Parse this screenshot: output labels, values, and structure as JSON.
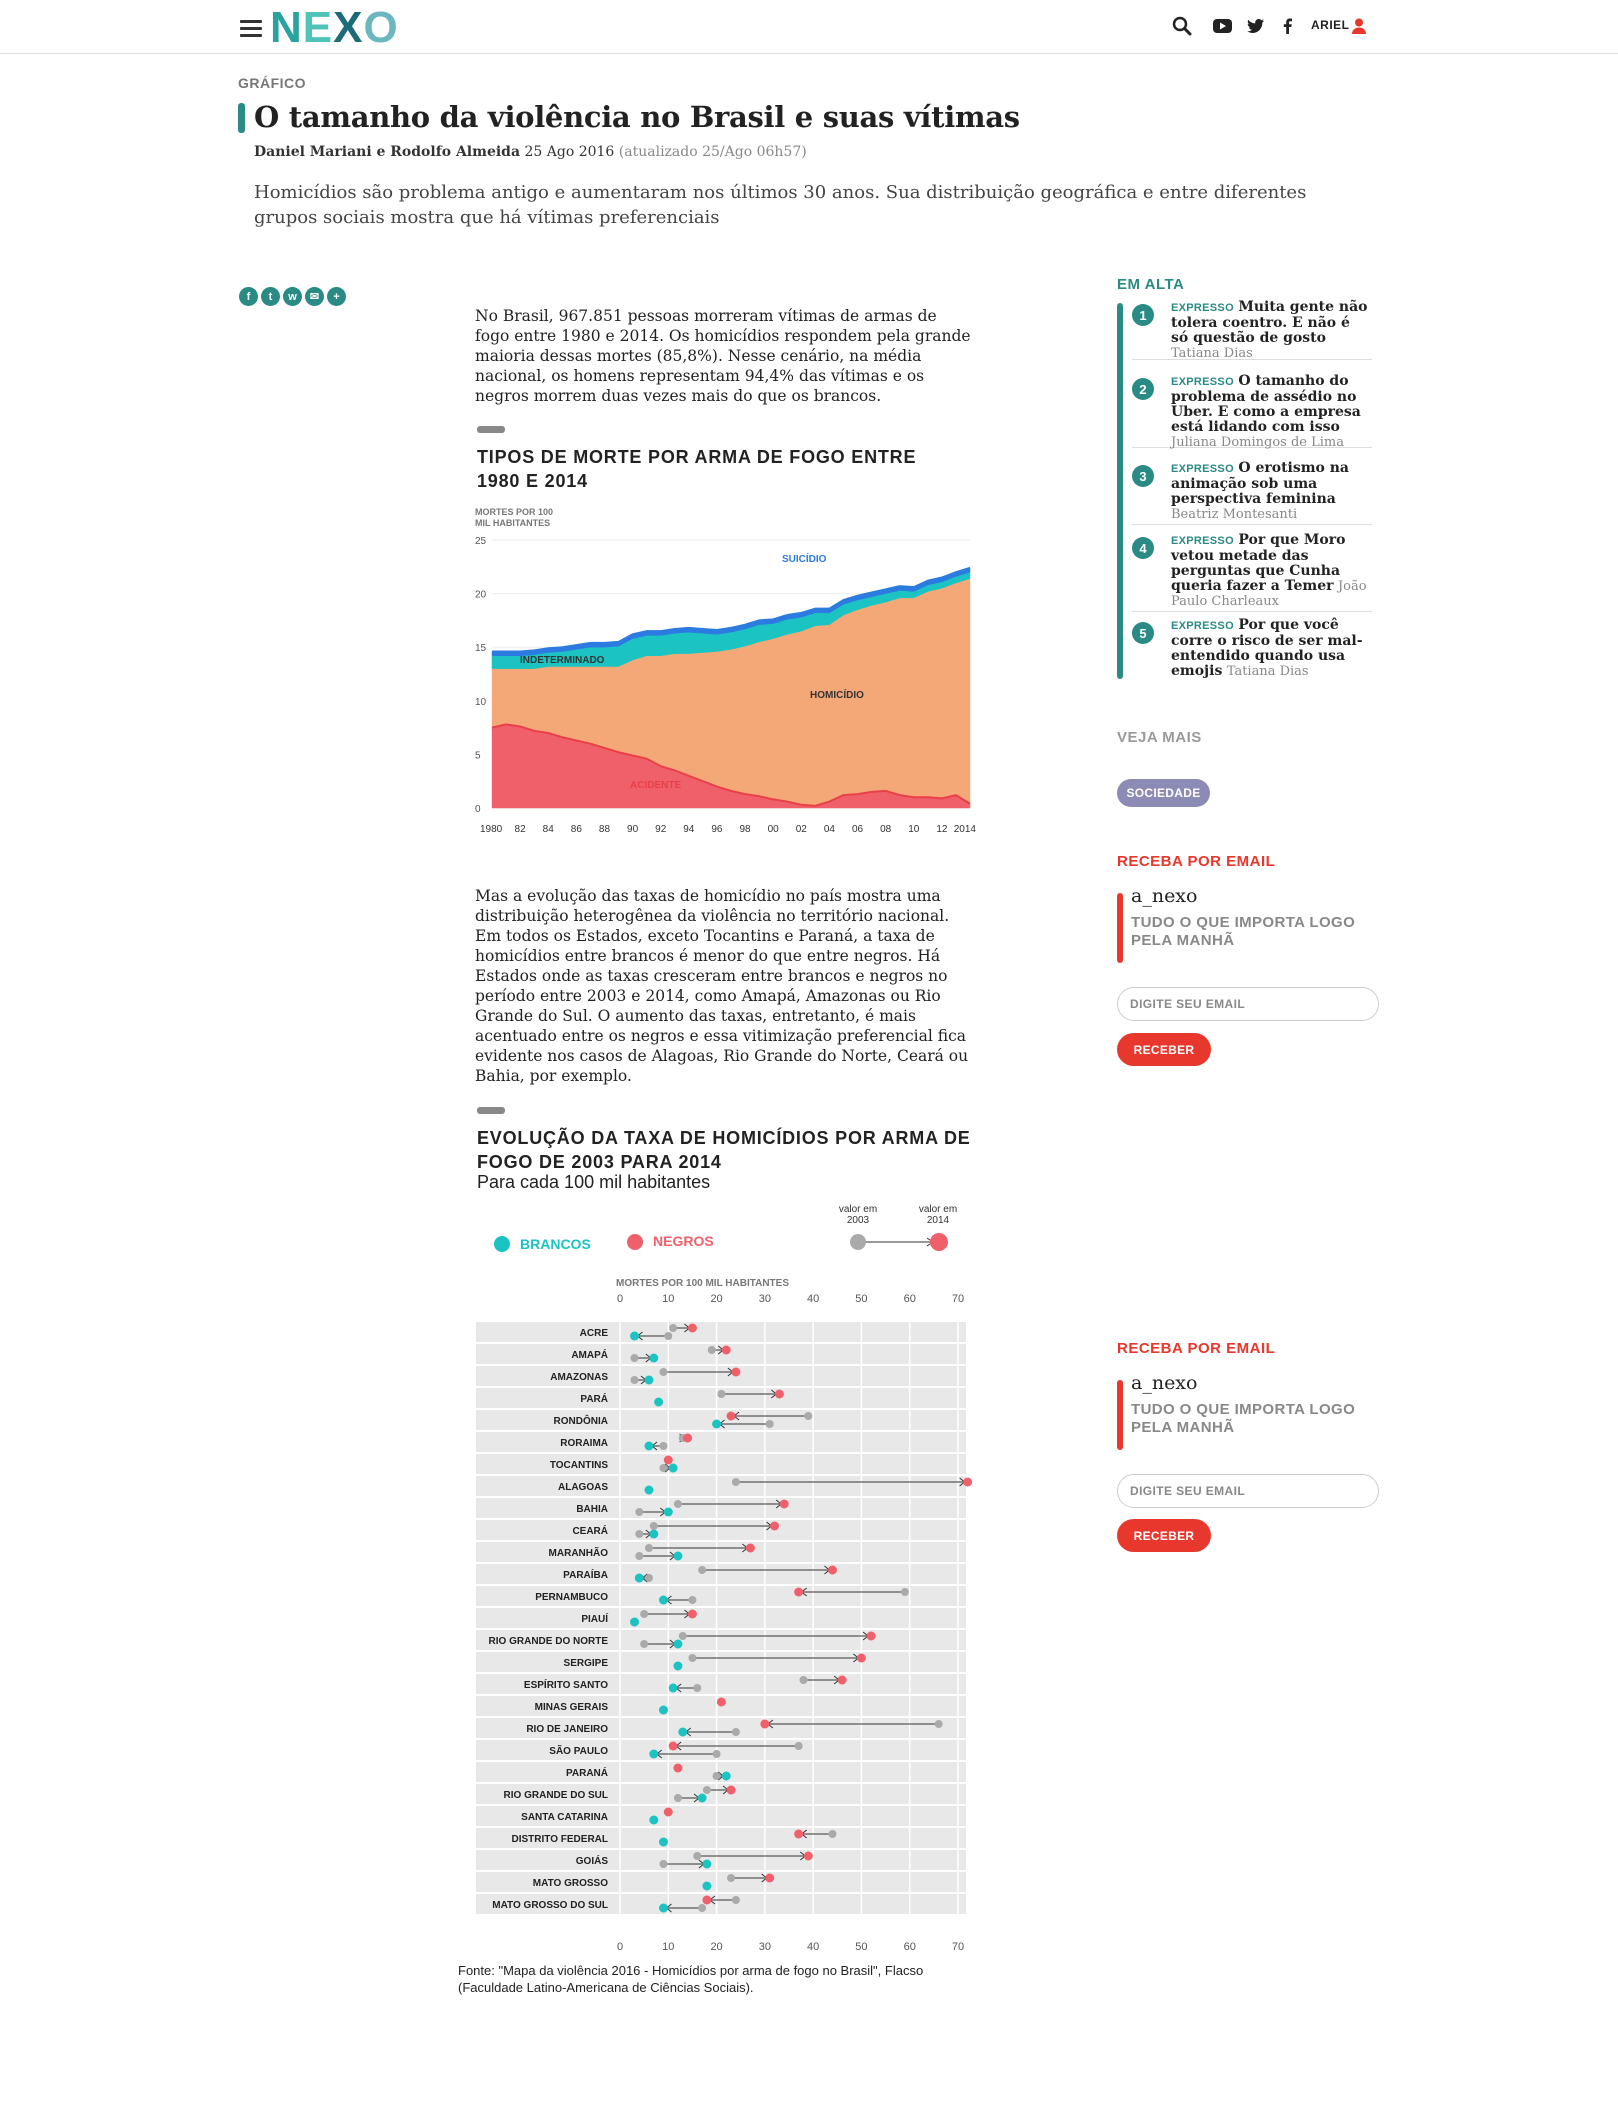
{
  "header": {
    "logo": "NEXO",
    "user_name": "ARIEL",
    "icons": [
      "menu-icon",
      "search-icon",
      "youtube-icon",
      "twitter-icon",
      "facebook-icon",
      "user-icon"
    ]
  },
  "article": {
    "section": "GRÁFICO",
    "title": "O tamanho da violência no Brasil e suas vítimas",
    "authors": "Daniel Mariani e Rodolfo Almeida",
    "date": "25 Ago 2016",
    "updated": "(atualizado 25/Ago 06h57)",
    "dek": "Homicídios são problema antigo e aumentaram nos últimos 30 anos. Sua distribuição geográfica e entre diferentes grupos sociais mostra que há vítimas preferenciais",
    "share_icons": [
      "facebook-icon",
      "twitter-icon",
      "whatsapp-icon",
      "email-icon",
      "plus-icon"
    ],
    "para1": "No Brasil, 967.851 pessoas morreram vítimas de armas de fogo entre 1980 e 2014. Os homicídios respondem pela grande maioria dessas mortes (85,8%). Nesse cenário, na média nacional, os homens representam 94,4% das vítimas e os negros morrem duas vezes mais do que os brancos.",
    "para2": "Mas a evolução das taxas de homicídio no país mostra uma distribuição heterogênea da violência no território nacional. Em todos os Estados, exceto Tocantins e Paraná, a taxa de homicídios entre brancos é menor do que entre negros. Há Estados onde as taxas cresceram entre brancos e negros no período entre 2003 e 2014, como Amapá, Amazonas ou Rio Grande do Sul. O aumento das taxas, entretanto, é mais acentuado entre os negros e essa vitimização preferencial fica evidente nos casos de Alagoas, Rio Grande do Norte, Ceará ou Bahia, por exemplo.",
    "source": "Fonte: \"Mapa da violência 2016 - Homicídios por arma de fogo no Brasil\", Flacso (Faculdade Latino-Americana de Ciências Sociais)."
  },
  "chart_data": [
    {
      "type": "area",
      "title": "TIPOS DE MORTE POR ARMA DE FOGO ENTRE 1980 E 2014",
      "ylabel": "MORTES POR 100 MIL HABITANTES",
      "ylim": [
        0,
        25
      ],
      "yticks": [
        "0",
        "5",
        "10",
        "15",
        "20",
        "25"
      ],
      "xticks": [
        "1980",
        "82",
        "84",
        "86",
        "88",
        "90",
        "92",
        "94",
        "96",
        "98",
        "00",
        "02",
        "04",
        "06",
        "08",
        "10",
        "12",
        "2014"
      ],
      "x": [
        1980,
        1981,
        1982,
        1983,
        1984,
        1985,
        1986,
        1987,
        1988,
        1989,
        1990,
        1991,
        1992,
        1993,
        1994,
        1995,
        1996,
        1997,
        1998,
        1999,
        2000,
        2001,
        2002,
        2003,
        2004,
        2005,
        2006,
        2007,
        2008,
        2009,
        2010,
        2011,
        2012,
        2013,
        2014
      ],
      "stacked": true,
      "series": [
        {
          "name": "ACIDENTE",
          "color": "#f0606a",
          "values": [
            7.5,
            7.8,
            7.6,
            7.2,
            7.0,
            6.6,
            6.3,
            6.0,
            5.6,
            5.2,
            4.9,
            4.6,
            3.9,
            3.5,
            3.0,
            2.5,
            2.0,
            1.6,
            1.3,
            1.1,
            0.8,
            0.6,
            0.3,
            0.2,
            0.6,
            1.2,
            1.3,
            1.5,
            1.6,
            1.2,
            1.0,
            1.0,
            0.9,
            1.2,
            0.4
          ]
        },
        {
          "name": "HOMICÍDIO",
          "color": "#f5a877",
          "values": [
            5.5,
            5.2,
            5.4,
            5.8,
            6.2,
            6.6,
            6.9,
            7.2,
            7.6,
            8.0,
            8.9,
            9.6,
            10.3,
            10.9,
            11.4,
            12.0,
            12.6,
            13.2,
            13.8,
            14.4,
            15.0,
            15.6,
            16.2,
            16.8,
            16.5,
            16.8,
            17.2,
            17.4,
            17.6,
            18.4,
            18.6,
            19.2,
            19.6,
            19.8,
            21.0
          ]
        },
        {
          "name": "INDETERMINADO",
          "color": "#1bc4c2",
          "values": [
            1.2,
            1.2,
            1.2,
            1.3,
            1.3,
            1.4,
            1.6,
            1.8,
            1.8,
            1.9,
            2.0,
            1.9,
            1.9,
            1.9,
            2.0,
            1.8,
            1.6,
            1.6,
            1.6,
            1.6,
            1.4,
            1.4,
            1.3,
            1.2,
            1.1,
            1.0,
            0.9,
            0.8,
            0.8,
            0.7,
            0.6,
            0.6,
            0.6,
            0.6,
            0.6
          ]
        },
        {
          "name": "SUICÍDIO",
          "color": "#2b7be0",
          "values": [
            0.4,
            0.4,
            0.4,
            0.4,
            0.4,
            0.4,
            0.4,
            0.4,
            0.4,
            0.4,
            0.4,
            0.4,
            0.4,
            0.4,
            0.4,
            0.4,
            0.4,
            0.4,
            0.4,
            0.4,
            0.4,
            0.4,
            0.4,
            0.4,
            0.4,
            0.4,
            0.4,
            0.4,
            0.4,
            0.4,
            0.4,
            0.4,
            0.4,
            0.4,
            0.4
          ]
        }
      ]
    },
    {
      "type": "dumbbell",
      "title": "EVOLUÇÃO DA TAXA DE HOMICÍDIOS POR ARMA DE FOGO DE 2003 PARA 2014",
      "subtitle": "Para cada 100 mil habitantes",
      "xlabel": "MORTES POR 100 MIL HABITANTES",
      "xlim": [
        0,
        70
      ],
      "xticks": [
        "0",
        "10",
        "20",
        "30",
        "40",
        "50",
        "60",
        "70"
      ],
      "legend": {
        "brancos": "BRANCOS",
        "negros": "NEGROS",
        "v2003": "valor em 2003",
        "v2014": "valor em 2014",
        "brancos_color": "#1bc4c2",
        "negros_color": "#f0606a"
      },
      "rows": [
        {
          "state": "ACRE",
          "b2003": 10,
          "b2014": 3,
          "n2003": 11,
          "n2014": 15
        },
        {
          "state": "AMAPÁ",
          "b2003": 3,
          "b2014": 7,
          "n2003": 19,
          "n2014": 22
        },
        {
          "state": "AMAZONAS",
          "b2003": 3,
          "b2014": 6,
          "n2003": 9,
          "n2014": 24
        },
        {
          "state": "PARÁ",
          "b2003": 8,
          "b2014": 8,
          "n2003": 21,
          "n2014": 33
        },
        {
          "state": "RONDÔNIA",
          "b2003": 31,
          "b2014": 20,
          "n2003": 39,
          "n2014": 23
        },
        {
          "state": "RORAIMA",
          "b2003": 9,
          "b2014": 6,
          "n2003": 13,
          "n2014": 14
        },
        {
          "state": "TOCANTINS",
          "b2003": 9,
          "b2014": 11,
          "n2003": 10,
          "n2014": 10
        },
        {
          "state": "ALAGOAS",
          "b2003": 6,
          "b2014": 6,
          "n2003": 24,
          "n2014": 72
        },
        {
          "state": "BAHIA",
          "b2003": 4,
          "b2014": 10,
          "n2003": 12,
          "n2014": 34
        },
        {
          "state": "CEARÁ",
          "b2003": 4,
          "b2014": 7,
          "n2003": 7,
          "n2014": 32
        },
        {
          "state": "MARANHÃO",
          "b2003": 4,
          "b2014": 12,
          "n2003": 6,
          "n2014": 27
        },
        {
          "state": "PARAÍBA",
          "b2003": 6,
          "b2014": 4,
          "n2003": 17,
          "n2014": 44
        },
        {
          "state": "PERNAMBUCO",
          "b2003": 15,
          "b2014": 9,
          "n2003": 59,
          "n2014": 37
        },
        {
          "state": "PIAUÍ",
          "b2003": 3,
          "b2014": 3,
          "n2003": 5,
          "n2014": 15
        },
        {
          "state": "RIO GRANDE DO NORTE",
          "b2003": 5,
          "b2014": 12,
          "n2003": 13,
          "n2014": 52
        },
        {
          "state": "SERGIPE",
          "b2003": 12,
          "b2014": 12,
          "n2003": 15,
          "n2014": 50
        },
        {
          "state": "ESPÍRITO SANTO",
          "b2003": 16,
          "b2014": 11,
          "n2003": 38,
          "n2014": 46
        },
        {
          "state": "MINAS GERAIS",
          "b2003": 9,
          "b2014": 9,
          "n2003": 21,
          "n2014": 21
        },
        {
          "state": "RIO DE JANEIRO",
          "b2003": 24,
          "b2014": 13,
          "n2003": 66,
          "n2014": 30
        },
        {
          "state": "SÃO PAULO",
          "b2003": 20,
          "b2014": 7,
          "n2003": 37,
          "n2014": 11
        },
        {
          "state": "PARANÁ",
          "b2003": 20,
          "b2014": 22,
          "n2003": 12,
          "n2014": 12
        },
        {
          "state": "RIO GRANDE DO SUL",
          "b2003": 12,
          "b2014": 17,
          "n2003": 18,
          "n2014": 23
        },
        {
          "state": "SANTA CATARINA",
          "b2003": 7,
          "b2014": 7,
          "n2003": 10,
          "n2014": 10
        },
        {
          "state": "DISTRITO FEDERAL",
          "b2003": 9,
          "b2014": 9,
          "n2003": 44,
          "n2014": 37
        },
        {
          "state": "GOIÁS",
          "b2003": 9,
          "b2014": 18,
          "n2003": 16,
          "n2014": 39
        },
        {
          "state": "MATO GROSSO",
          "b2003": 18,
          "b2014": 18,
          "n2003": 23,
          "n2014": 31
        },
        {
          "state": "MATO GROSSO DO SUL",
          "b2003": 17,
          "b2014": 9,
          "n2003": 24,
          "n2014": 18
        }
      ]
    }
  ],
  "sidebar": {
    "em_alta": "EM ALTA",
    "trending": [
      {
        "num": "1",
        "tag": "EXPRESSO",
        "headline": "Muita gente não tolera coentro. E não é só questão de gosto",
        "author": "Tatiana Dias"
      },
      {
        "num": "2",
        "tag": "EXPRESSO",
        "headline": "O tamanho do problema de assédio no Uber. E como a empresa está lidando com isso",
        "author": "Juliana Domingos de Lima"
      },
      {
        "num": "3",
        "tag": "EXPRESSO",
        "headline": "O erotismo na animação sob uma perspectiva feminina",
        "author": "Beatriz Montesanti"
      },
      {
        "num": "4",
        "tag": "EXPRESSO",
        "headline": "Por que Moro vetou metade das perguntas que Cunha queria fazer a Temer",
        "author": "João Paulo Charleaux"
      },
      {
        "num": "5",
        "tag": "EXPRESSO",
        "headline": "Por que você corre o risco de ser mal-entendido quando usa emojis",
        "author": "Tatiana Dias"
      }
    ],
    "veja_mais": "VEJA MAIS",
    "tag": "SOCIEDADE",
    "newsletter": {
      "title": "RECEBA POR EMAIL",
      "name": "a_nexo",
      "desc": "TUDO O QUE IMPORTA LOGO PELA MANHÃ",
      "placeholder": "DIGITE SEU EMAIL",
      "button": "RECEBER"
    }
  }
}
